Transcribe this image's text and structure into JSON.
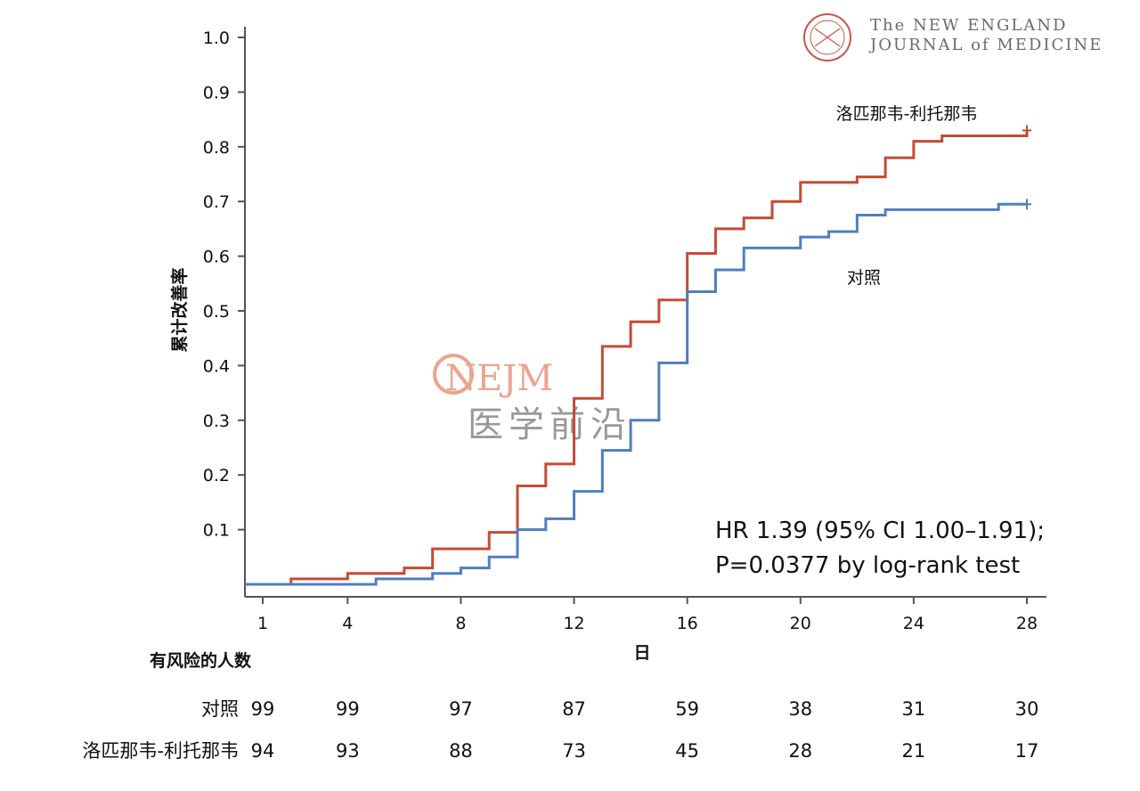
{
  "journal": {
    "line1": "The NEW ENGLAND",
    "line2": "JOURNAL of MEDICINE"
  },
  "watermark": {
    "brand": "NEJM",
    "subtitle": "医学前沿"
  },
  "colors": {
    "treatment": "#c64b34",
    "control": "#4f7ec1",
    "axis": "#555555",
    "watermark_brand": "#eb9a85"
  },
  "chart_data": {
    "type": "line",
    "step": true,
    "ylabel": "累计改善率",
    "xlabel": "日",
    "xlim": [
      1,
      28
    ],
    "ylim": [
      0,
      1.0
    ],
    "y_ticks": [
      "0.1",
      "0.2",
      "0.3",
      "0.4",
      "0.5",
      "0.6",
      "0.7",
      "0.8",
      "0.9",
      "1.0"
    ],
    "x_ticks": [
      "1",
      "4",
      "8",
      "12",
      "16",
      "20",
      "24",
      "28"
    ],
    "series": [
      {
        "name": "洛匹那韦-利托那韦",
        "x": [
          0,
          2,
          4,
          6,
          7,
          9,
          10,
          11,
          12,
          13,
          14,
          15,
          16,
          17,
          18,
          19,
          20,
          22,
          23,
          24,
          25,
          28
        ],
        "y": [
          0,
          0.01,
          0.02,
          0.03,
          0.065,
          0.095,
          0.18,
          0.22,
          0.34,
          0.435,
          0.48,
          0.52,
          0.605,
          0.65,
          0.67,
          0.7,
          0.735,
          0.745,
          0.78,
          0.81,
          0.82,
          0.83
        ]
      },
      {
        "name": "对照",
        "x": [
          0,
          5,
          7,
          8,
          9,
          10,
          11,
          12,
          13,
          14,
          15,
          16,
          17,
          18,
          20,
          21,
          22,
          23,
          27,
          28
        ],
        "y": [
          0,
          0.01,
          0.02,
          0.03,
          0.05,
          0.1,
          0.12,
          0.17,
          0.245,
          0.3,
          0.405,
          0.535,
          0.575,
          0.615,
          0.635,
          0.645,
          0.675,
          0.685,
          0.695,
          0.695
        ]
      }
    ],
    "annotations": {
      "hr_line": "HR 1.39 (95% CI 1.00–1.91);",
      "p_line": "P=0.0377 by log-rank test"
    },
    "risk_table": {
      "title": "有风险的人数",
      "rows": [
        {
          "label": "对照",
          "values": [
            "99",
            "99",
            "97",
            "87",
            "59",
            "38",
            "31",
            "30"
          ]
        },
        {
          "label": "洛匹那韦-利托那韦",
          "values": [
            "94",
            "93",
            "88",
            "73",
            "45",
            "28",
            "21",
            "17"
          ]
        }
      ]
    }
  }
}
